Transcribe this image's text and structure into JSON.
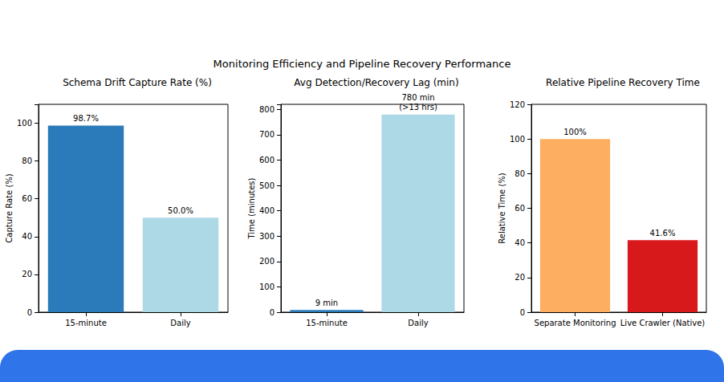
{
  "title": "Monitoring Efficiency and Pipeline Recovery Performance",
  "chart_data": [
    {
      "type": "bar",
      "title": "Schema Drift Capture Rate (%)",
      "categories": [
        "15-minute",
        "Daily"
      ],
      "values": [
        98.7,
        50.0
      ],
      "value_labels": [
        "98.7%",
        "50.0%"
      ],
      "colors": [
        "#2b7bba",
        "#add8e6"
      ],
      "ylabel": "Capture Rate (%)",
      "ylim": [
        0,
        110
      ],
      "yticks": [
        0,
        20,
        40,
        60,
        80,
        100
      ],
      "grid": false,
      "data_labels": true
    },
    {
      "type": "bar",
      "title": "Avg Detection/Recovery Lag (min)",
      "categories": [
        "15-minute",
        "Daily"
      ],
      "values": [
        9,
        780
      ],
      "value_labels": [
        "9 min",
        "780 min\n(>13 hrs)"
      ],
      "colors": [
        "#2b7bba",
        "#add8e6"
      ],
      "ylabel": "Time (minutes)",
      "ylim": [
        0,
        820
      ],
      "yticks": [
        0,
        100,
        200,
        300,
        400,
        500,
        600,
        700,
        800
      ],
      "grid": false,
      "data_labels": true
    },
    {
      "type": "bar",
      "title": "Relative Pipeline Recovery Time",
      "categories": [
        "Separate Monitoring",
        "Live Crawler (Native)"
      ],
      "values": [
        100,
        41.6
      ],
      "value_labels": [
        "100%",
        "41.6%"
      ],
      "colors": [
        "#fdae61",
        "#d7191c"
      ],
      "ylabel": "Relative Time (%)",
      "ylim": [
        0,
        120
      ],
      "yticks": [
        0,
        20,
        40,
        60,
        80,
        100,
        120
      ],
      "grid": false,
      "data_labels": true
    }
  ]
}
